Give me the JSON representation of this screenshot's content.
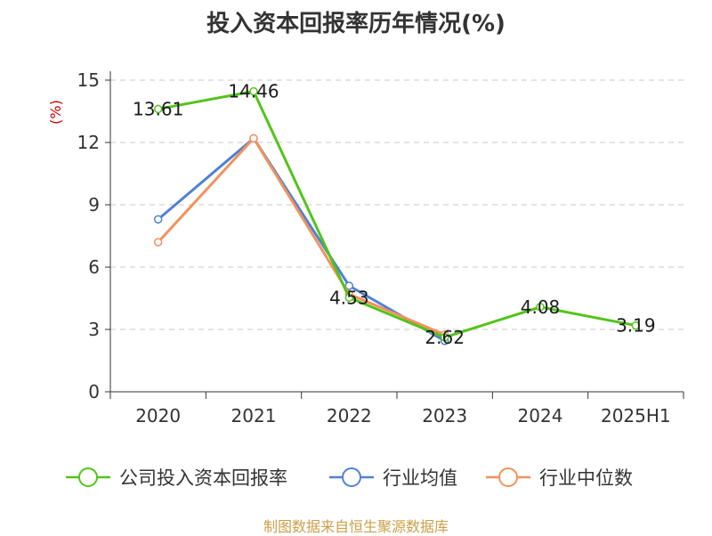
{
  "title": "投入资本回报率历年情况(%)",
  "source": "制图数据来自恒生聚源数据库",
  "chart_data": {
    "type": "line",
    "title": "投入资本回报率历年情况(%)",
    "ylabel": "(%)",
    "xlabel": "",
    "categories": [
      "2020",
      "2021",
      "2022",
      "2023",
      "2024",
      "2025H1"
    ],
    "ylim": [
      0,
      15
    ],
    "yticks": [
      0,
      3,
      6,
      9,
      12,
      15
    ],
    "grid": true,
    "legend_position": "bottom",
    "series": [
      {
        "name": "公司投入资本回报率",
        "color": "#52c41a",
        "values": [
          13.61,
          14.46,
          4.53,
          2.62,
          4.08,
          3.19
        ],
        "labels": [
          "13.61",
          "14.46",
          "4.53",
          "2.62",
          "4.08",
          "3.19"
        ]
      },
      {
        "name": "行业均值",
        "color": "#4f81d6",
        "values": [
          8.3,
          12.2,
          5.1,
          2.45,
          null,
          null
        ]
      },
      {
        "name": "行业中位数",
        "color": "#f4915a",
        "values": [
          7.2,
          12.2,
          4.7,
          2.75,
          null,
          null
        ]
      }
    ]
  }
}
